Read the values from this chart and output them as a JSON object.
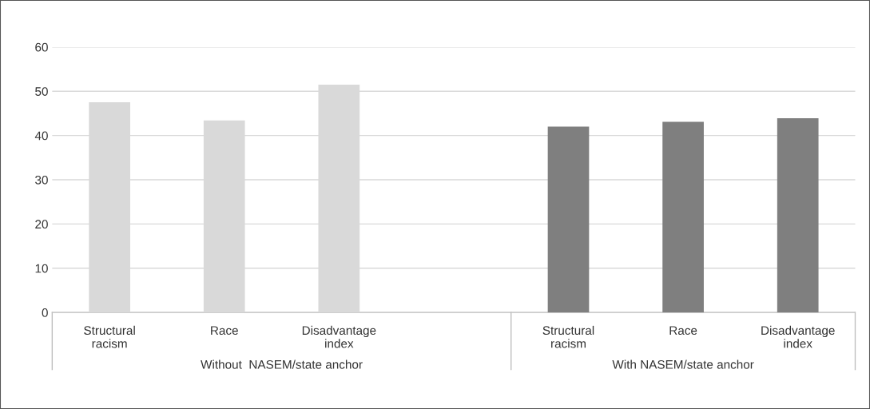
{
  "chart_data": {
    "type": "bar",
    "categories": [
      "Structural\nracism",
      "Race",
      "Disadvantage\nindex",
      null,
      "Structural\nracism",
      "Race",
      "Disadvantage\nindex"
    ],
    "values": [
      47.5,
      43.4,
      51.5,
      null,
      42.0,
      43.1,
      43.9
    ],
    "colors": [
      "#d9d9d9",
      "#d9d9d9",
      "#d9d9d9",
      "#d9d9d9",
      "#7f7f7f",
      "#7f7f7f",
      "#7f7f7f"
    ],
    "ylim": [
      0,
      60
    ],
    "yticks": [
      0,
      10,
      20,
      30,
      40,
      50,
      60
    ],
    "grid": "y",
    "annotations": [
      "Without  NASEM/state anchor",
      "With NASEM/state anchor"
    ]
  }
}
